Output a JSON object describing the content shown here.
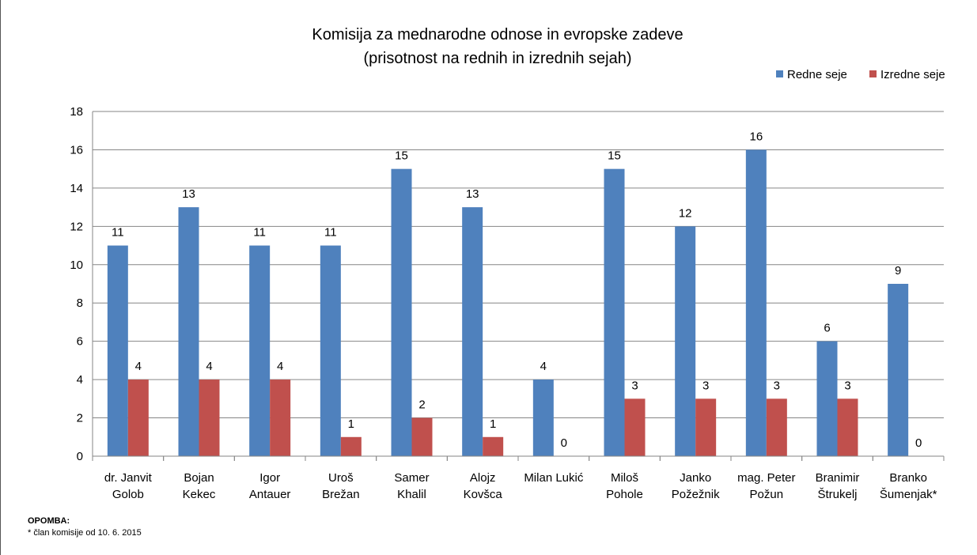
{
  "chart_data": {
    "type": "bar",
    "title": "Komisija za mednarodne odnose in evropske zadeve",
    "subtitle": "(prisotnost na rednih in izrednih sejah)",
    "xlabel": "",
    "ylabel": "",
    "ylim": [
      0,
      18
    ],
    "yticks": [
      0,
      2,
      4,
      6,
      8,
      10,
      12,
      14,
      16,
      18
    ],
    "grid": true,
    "legend_position": "top-right",
    "categories": [
      [
        "dr. Janvit",
        "Golob"
      ],
      [
        "Bojan",
        "Kekec"
      ],
      [
        "Igor",
        "Antauer"
      ],
      [
        "Uroš",
        "Brežan"
      ],
      [
        "Samer",
        "Khalil"
      ],
      [
        "Alojz",
        "Kovšca"
      ],
      [
        "Milan Lukić"
      ],
      [
        "Miloš",
        "Pohole"
      ],
      [
        "Janko",
        "Požežnik"
      ],
      [
        "mag. Peter",
        "Požun"
      ],
      [
        "Branimir",
        "Štrukelj"
      ],
      [
        "Branko",
        "Šumenjak*"
      ]
    ],
    "series": [
      {
        "name": "Redne seje",
        "color": "#4F81BD",
        "values": [
          11,
          13,
          11,
          11,
          15,
          13,
          4,
          15,
          12,
          16,
          6,
          9
        ]
      },
      {
        "name": "Izredne seje",
        "color": "#C0504D",
        "values": [
          4,
          4,
          4,
          1,
          2,
          1,
          0,
          3,
          3,
          3,
          3,
          0
        ]
      }
    ]
  },
  "notes": {
    "title": "OPOMBA:",
    "text": "*  član komisije od 10. 6. 2015"
  }
}
